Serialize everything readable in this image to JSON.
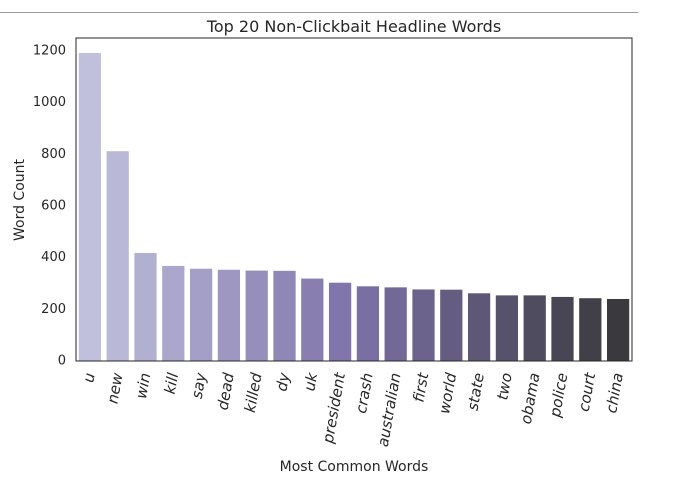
{
  "chart_data": {
    "type": "bar",
    "title": "Top 20 Non-Clickbait Headline Words",
    "xlabel": "Most Common Words",
    "ylabel": "Word Count",
    "categories": [
      "u",
      "new",
      "win",
      "kill",
      "say",
      "dead",
      "killed",
      "dy",
      "uk",
      "president",
      "crash",
      "australian",
      "first",
      "world",
      "state",
      "two",
      "obama",
      "police",
      "court",
      "china"
    ],
    "values": [
      1192,
      812,
      418,
      368,
      357,
      353,
      350,
      349,
      319,
      303,
      289,
      285,
      277,
      276,
      262,
      254,
      254,
      248,
      243,
      240
    ],
    "ylim": [
      0,
      1250
    ],
    "yticks": [
      0,
      200,
      400,
      600,
      800,
      1000,
      1200
    ],
    "grid": false,
    "palette_start": "#c0c0dc",
    "palette_mid": "#7e72a8",
    "palette_end": "#3a3a3e"
  }
}
